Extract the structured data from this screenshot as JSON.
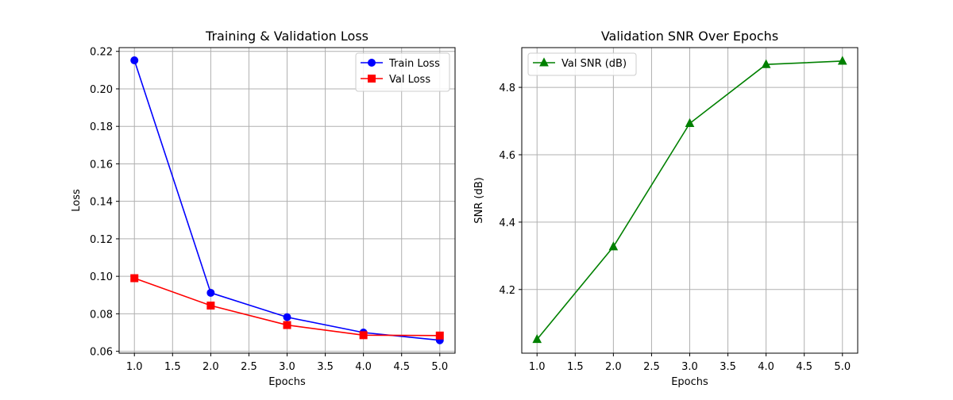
{
  "chart_data": [
    {
      "type": "line",
      "title": "Training & Validation Loss",
      "xlabel": "Epochs",
      "ylabel": "Loss",
      "grid": true,
      "legend_position": "top-right",
      "x": [
        1.0,
        2.0,
        3.0,
        4.0,
        5.0
      ],
      "xlim": [
        0.8,
        5.2
      ],
      "ylim": [
        0.059,
        0.222
      ],
      "xticks": [
        "1.0",
        "1.5",
        "2.0",
        "2.5",
        "3.0",
        "3.5",
        "4.0",
        "4.5",
        "5.0"
      ],
      "yticks": [
        "0.06",
        "0.08",
        "0.10",
        "0.12",
        "0.14",
        "0.16",
        "0.18",
        "0.20",
        "0.22"
      ],
      "series": [
        {
          "name": "Train Loss",
          "color": "#0000ff",
          "marker": "circle",
          "values": [
            0.2152,
            0.0912,
            0.0782,
            0.07,
            0.0659
          ]
        },
        {
          "name": "Val Loss",
          "color": "#ff0000",
          "marker": "square",
          "values": [
            0.099,
            0.0844,
            0.074,
            0.0686,
            0.0684
          ]
        }
      ]
    },
    {
      "type": "line",
      "title": "Validation SNR Over Epochs",
      "xlabel": "Epochs",
      "ylabel": "SNR (dB)",
      "grid": true,
      "legend_position": "top-left",
      "x": [
        1.0,
        2.0,
        3.0,
        4.0,
        5.0
      ],
      "xlim": [
        0.8,
        5.2
      ],
      "ylim": [
        4.011,
        4.918
      ],
      "xticks": [
        "1.0",
        "1.5",
        "2.0",
        "2.5",
        "3.0",
        "3.5",
        "4.0",
        "4.5",
        "5.0"
      ],
      "yticks": [
        "4.2",
        "4.4",
        "4.6",
        "4.8"
      ],
      "series": [
        {
          "name": "Val SNR (dB)",
          "color": "#008000",
          "marker": "triangle",
          "values": [
            4.052,
            4.327,
            4.693,
            4.868,
            4.878
          ]
        }
      ]
    }
  ]
}
